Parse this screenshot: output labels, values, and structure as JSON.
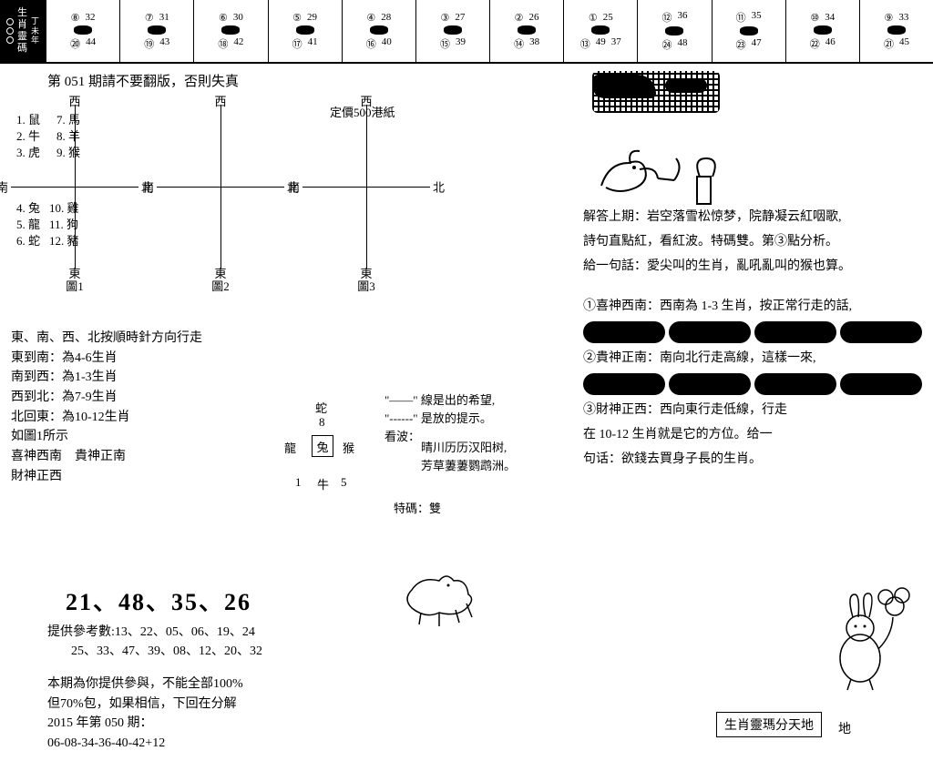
{
  "zodiac_label": {
    "line1": "生",
    "line2": "肖",
    "line3": "靈",
    "line4": "碼",
    "year1": "丁",
    "year2": "未",
    "year3": "年"
  },
  "zodiac_cells": [
    {
      "nums": [
        "⑧",
        "32",
        "⑳",
        "44"
      ]
    },
    {
      "nums": [
        "⑦",
        "31",
        "⑲",
        "43"
      ]
    },
    {
      "nums": [
        "⑥",
        "30",
        "⑱",
        "42"
      ]
    },
    {
      "nums": [
        "⑤",
        "29",
        "⑰",
        "41"
      ]
    },
    {
      "nums": [
        "④",
        "28",
        "⑯",
        "40"
      ]
    },
    {
      "nums": [
        "③",
        "27",
        "⑮",
        "39"
      ]
    },
    {
      "nums": [
        "②",
        "26",
        "⑭",
        "38"
      ]
    },
    {
      "nums": [
        "①",
        "25",
        "⑬",
        "49",
        "37"
      ]
    },
    {
      "nums": [
        "⑫",
        "36",
        "㉔",
        "48"
      ]
    },
    {
      "nums": [
        "⑪",
        "35",
        "㉓",
        "47"
      ]
    },
    {
      "nums": [
        "⑩",
        "34",
        "㉒",
        "46"
      ]
    },
    {
      "nums": [
        "⑨",
        "33",
        "㉑",
        "45"
      ]
    }
  ],
  "title": "第 051 期請不要翻版，否則失真",
  "price": "定價500港紙",
  "directions": {
    "north": "西",
    "south": "東",
    "east": "北",
    "west": "南"
  },
  "animals_top": {
    "c1": [
      "1. 鼠",
      "2. 牛",
      "3. 虎"
    ],
    "c2": [
      "7. 馬",
      "8. 羊",
      "9. 猴"
    ]
  },
  "animals_bot": {
    "c1": [
      "4. 兔",
      "5. 龍",
      "6. 蛇"
    ],
    "c2": [
      "10. 雞",
      "11. 狗",
      "12. 豬"
    ]
  },
  "diagram_labels": {
    "d1": "圖1",
    "d2": "圖2",
    "d3": "圖3"
  },
  "rules": [
    "東、南、西、北按順時針方向行走",
    "東到南：為4-6生肖",
    "南到西：為1-3生肖",
    "西到北：為7-9生肖",
    "北回東：為10-12生肖",
    "如圖1所示",
    "喜神西南　貴神正南",
    "財神正西"
  ],
  "small_cross": {
    "top": "蛇",
    "top2": "8",
    "left": "龍",
    "center": "兔",
    "right": "猴",
    "bottom": "牛",
    "bl": "1",
    "br": "5"
  },
  "hope": {
    "l1": "\"——\" 線是出的希望,",
    "l2": "\"------\" 是放的提示。",
    "l3": "看波："
  },
  "poem": {
    "l1": "晴川历历汉阳树,",
    "l2": "芳草萋萋鹦鹉洲。"
  },
  "tema": "特碼：雙",
  "big_numbers": "21、48、35、26",
  "ref": {
    "label": "提供參考數:",
    "line1": "13、22、05、06、19、24",
    "line2": "25、33、47、39、08、12、20、32"
  },
  "note": {
    "l1": "本期為你提供參與，不能全部100%",
    "l2": "但70%包，如果相信，下回在分解",
    "l3": "2015 年第 050 期：",
    "l4": "06-08-34-36-40-42+12"
  },
  "right": {
    "answer": "解答上期：岩空落雪松惊梦，院静凝云紅咽歌,",
    "answer2": "詩句直點紅，看紅波。特碼雙。第③點分析。",
    "answer3": "給一句話：愛尖叫的生肖，亂吼亂叫的猴也算。",
    "p1": "①喜神西南：西南為 1-3 生肖，按正常行走的話,",
    "p2": "②貴神正南：南向北行走高線，這樣一來,",
    "p3": "③財神正西：西向東行走低線，行走",
    "p3b": "在 10-12 生肖就是它的方位。给一",
    "p3c": "句话：欲錢去買身子長的生肖。"
  },
  "footer": "生肖靈瑪分天地",
  "ground": "地"
}
